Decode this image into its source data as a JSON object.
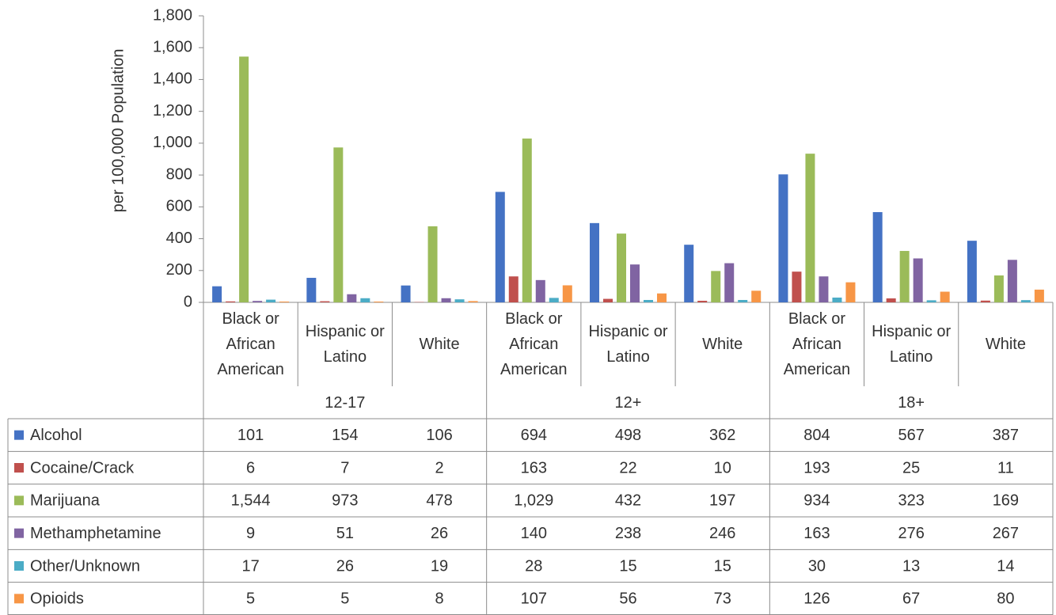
{
  "chart_data": {
    "type": "bar",
    "y_axis_label": "per 100,000 Population",
    "categories": [
      "Black or African American",
      "Hispanic or Latino",
      "White",
      "Black or African American",
      "Hispanic or Latino",
      "White",
      "Black or African American",
      "Hispanic or Latino",
      "White"
    ],
    "groups": [
      "12-17",
      "12+",
      "18+"
    ],
    "series": [
      {
        "name": "Alcohol",
        "color": "#4472c4",
        "values": [
          101,
          154,
          106,
          694,
          498,
          362,
          804,
          567,
          387
        ]
      },
      {
        "name": "Cocaine/Crack",
        "color": "#c0504d",
        "values": [
          6,
          7,
          2,
          163,
          22,
          10,
          193,
          25,
          11
        ]
      },
      {
        "name": "Marijuana",
        "color": "#9bbb59",
        "values": [
          1544,
          973,
          478,
          1029,
          432,
          197,
          934,
          323,
          169
        ],
        "value_labels": [
          "1,544",
          "973",
          "478",
          "1,029",
          "432",
          "197",
          "934",
          "323",
          "169"
        ]
      },
      {
        "name": "Methamphetamine",
        "color": "#8064a2",
        "values": [
          9,
          51,
          26,
          140,
          238,
          246,
          163,
          276,
          267
        ]
      },
      {
        "name": "Other/Unknown",
        "color": "#4bacc6",
        "values": [
          17,
          26,
          19,
          28,
          15,
          15,
          30,
          13,
          14
        ]
      },
      {
        "name": "Opioids",
        "color": "#f79646",
        "values": [
          5,
          5,
          8,
          107,
          56,
          73,
          126,
          67,
          80
        ]
      }
    ],
    "ylim": [
      0,
      1800
    ],
    "yticks": [
      0,
      200,
      400,
      600,
      800,
      {
        "value": 1000,
        "label": "1,000"
      },
      {
        "value": 1200,
        "label": "1,200"
      },
      {
        "value": 1400,
        "label": "1,400"
      },
      {
        "value": 1600,
        "label": "1,600"
      },
      {
        "value": 1800,
        "label": "1,800"
      }
    ],
    "grid": false
  }
}
